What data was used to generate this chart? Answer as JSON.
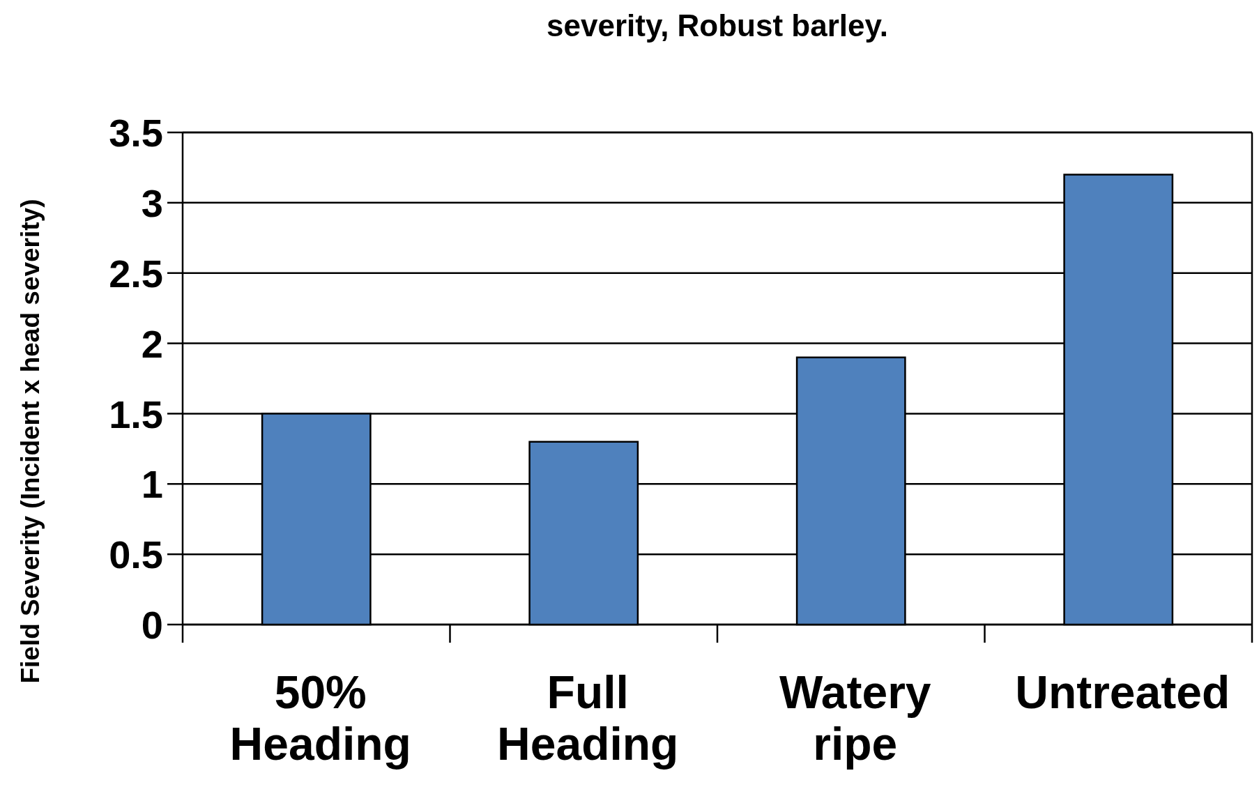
{
  "chart_data": {
    "type": "bar",
    "title": "severity, Robust barley.",
    "ylabel": "Field Severity (Incident x head severity)",
    "categories": [
      "50% Heading",
      "Full Heading",
      "Watery ripe",
      "Untreated"
    ],
    "values": [
      1.5,
      1.3,
      1.9,
      3.2
    ],
    "color": "#4f81bd",
    "ylim": [
      0,
      3.5
    ],
    "yticks": [
      0,
      0.5,
      1,
      1.5,
      2,
      2.5,
      3,
      3.5
    ],
    "grid": true
  }
}
